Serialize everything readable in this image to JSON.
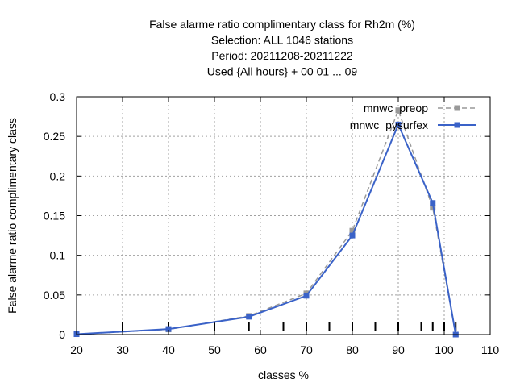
{
  "chart_data": {
    "type": "line",
    "title_lines": [
      "False alarme ratio complimentary class  for Rh2m (%)",
      "Selection: ALL    1046 stations",
      "Period: 20211208-20211222",
      "Used {All hours} + 00 01 ... 09"
    ],
    "xlabel": "classes %",
    "ylabel": "False alarme ratio complimentary class",
    "xlim": [
      20,
      110
    ],
    "ylim": [
      0,
      0.3
    ],
    "xticks": [
      20,
      30,
      40,
      50,
      60,
      70,
      80,
      90,
      100,
      110
    ],
    "yticks": [
      0,
      0.05,
      0.1,
      0.15,
      0.2,
      0.25,
      0.3
    ],
    "ytick_labels": [
      "0",
      "0.05",
      "0.1",
      "0.15",
      "0.2",
      "0.25",
      "0.3"
    ],
    "grid": true,
    "legend_position": "top-right",
    "class_markers": [
      30,
      40,
      50,
      57.5,
      65,
      70,
      75,
      80,
      85,
      90,
      95,
      97.5,
      100,
      102.5
    ],
    "series": [
      {
        "name": "mnwc_preop",
        "color": "#999999",
        "dashed": true,
        "x": [
          20,
          40,
          57.5,
          70,
          80,
          90,
          97.5,
          102.5
        ],
        "y": [
          0.0005,
          0.0065,
          0.0235,
          0.052,
          0.131,
          0.283,
          0.16,
          0.0
        ]
      },
      {
        "name": "mnwc_pysurfex",
        "color": "#3a62c8",
        "dashed": false,
        "x": [
          20,
          40,
          57.5,
          70,
          80,
          90,
          97.5,
          102.5
        ],
        "y": [
          0.0005,
          0.007,
          0.0225,
          0.049,
          0.125,
          0.265,
          0.166,
          0.0
        ]
      }
    ]
  }
}
